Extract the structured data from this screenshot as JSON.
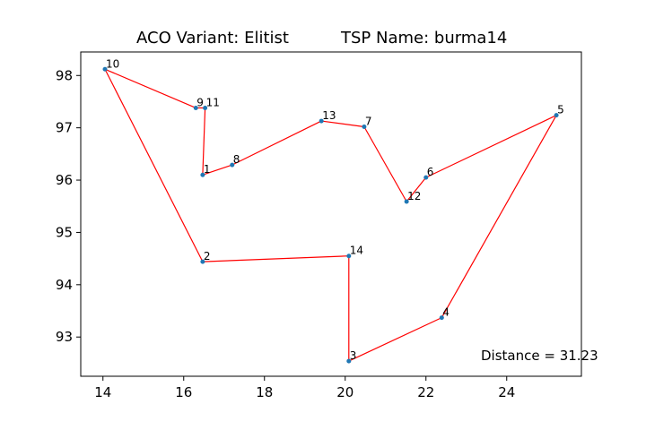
{
  "chart_data": {
    "type": "line",
    "title_left": "ACO Variant: Elitist",
    "title_right": "TSP Name: burma14",
    "annotation": "Distance = 31.23",
    "xlim": [
      13.45,
      25.85
    ],
    "ylim": [
      92.25,
      98.45
    ],
    "xticks": [
      14,
      16,
      18,
      20,
      22,
      24
    ],
    "yticks": [
      93,
      94,
      95,
      96,
      97,
      98
    ],
    "grid": false,
    "route_color": "#ff0000",
    "point_color": "#1f77b4",
    "points": [
      {
        "label": "1",
        "x": 16.47,
        "y": 96.1
      },
      {
        "label": "2",
        "x": 16.47,
        "y": 94.44
      },
      {
        "label": "3",
        "x": 20.09,
        "y": 92.54
      },
      {
        "label": "4",
        "x": 22.39,
        "y": 93.37
      },
      {
        "label": "5",
        "x": 25.23,
        "y": 97.24
      },
      {
        "label": "6",
        "x": 22.0,
        "y": 96.05
      },
      {
        "label": "7",
        "x": 20.47,
        "y": 97.02
      },
      {
        "label": "8",
        "x": 17.2,
        "y": 96.29
      },
      {
        "label": "9",
        "x": 16.3,
        "y": 97.38
      },
      {
        "label": "10",
        "x": 14.05,
        "y": 98.12
      },
      {
        "label": "11",
        "x": 16.53,
        "y": 97.38
      },
      {
        "label": "12",
        "x": 21.52,
        "y": 95.59
      },
      {
        "label": "13",
        "x": 19.41,
        "y": 97.13
      },
      {
        "label": "14",
        "x": 20.09,
        "y": 94.55
      }
    ],
    "tour": [
      "10",
      "9",
      "11",
      "1",
      "8",
      "13",
      "7",
      "12",
      "6",
      "5",
      "4",
      "3",
      "14",
      "2",
      "10"
    ]
  }
}
